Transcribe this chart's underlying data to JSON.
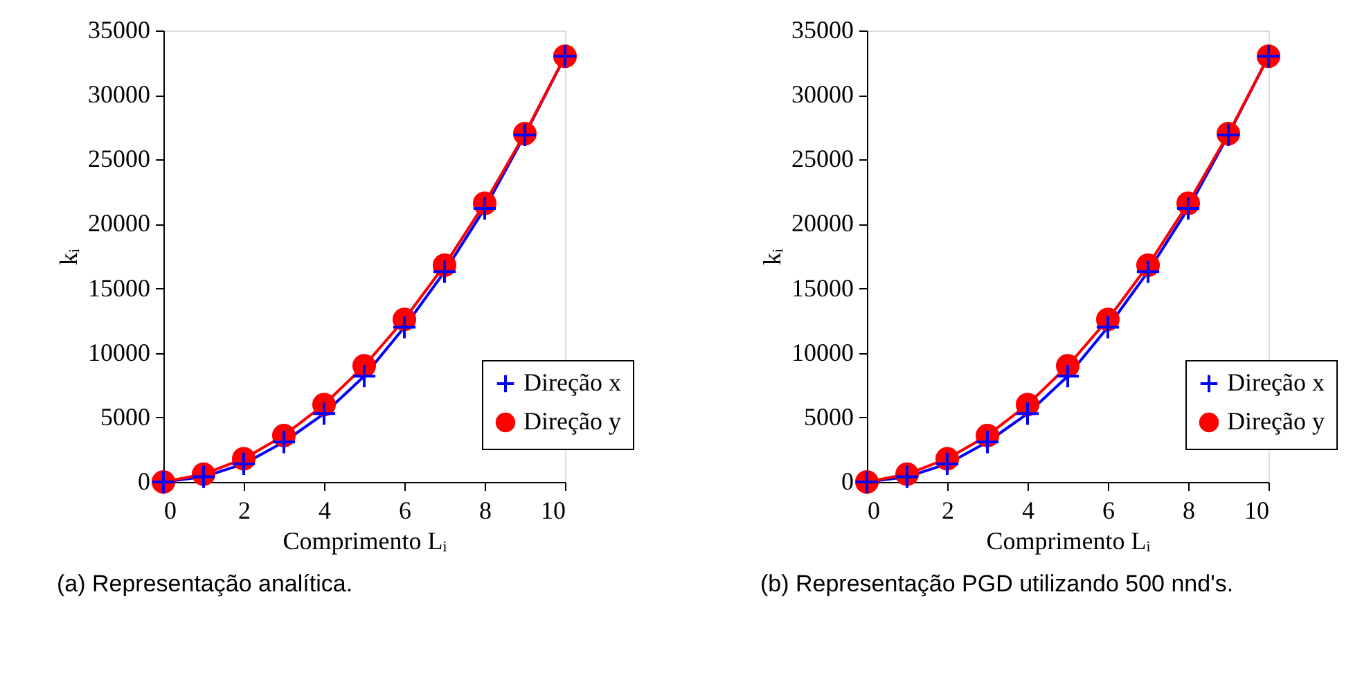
{
  "chart_data": [
    {
      "type": "line",
      "xlabel": "Comprimento Lᵢ",
      "ylabel": "kᵢ",
      "x": [
        0,
        1,
        2,
        3,
        4,
        5,
        6,
        7,
        8,
        9,
        10
      ],
      "xlim": [
        0,
        10
      ],
      "xticks": [
        0,
        2,
        4,
        6,
        8,
        10
      ],
      "ylim": [
        0,
        35000
      ],
      "yticks": [
        0,
        5000,
        10000,
        15000,
        20000,
        25000,
        30000,
        35000
      ],
      "grid": false,
      "legend": "bottom right",
      "line_style": "solid",
      "annotations": [
        "(a)  Representação analítica."
      ],
      "series": [
        {
          "name": "Direção x",
          "color": "#0000ff",
          "marker": "cross",
          "values": [
            0,
            400,
            1400,
            3100,
            5300,
            8200,
            12000,
            16300,
            21200,
            26900,
            33000
          ]
        },
        {
          "name": "Direção y",
          "color": "#ff0000",
          "marker": "circle",
          "values": [
            0,
            600,
            1800,
            3600,
            6000,
            9000,
            12600,
            16800,
            21600,
            27000,
            33000
          ]
        }
      ]
    },
    {
      "type": "line",
      "xlabel": "Comprimento Lᵢ",
      "ylabel": "kᵢ",
      "x": [
        0,
        1,
        2,
        3,
        4,
        5,
        6,
        7,
        8,
        9,
        10
      ],
      "xlim": [
        0,
        10
      ],
      "xticks": [
        0,
        2,
        4,
        6,
        8,
        10
      ],
      "ylim": [
        0,
        35000
      ],
      "yticks": [
        0,
        5000,
        10000,
        15000,
        20000,
        25000,
        30000,
        35000
      ],
      "grid": false,
      "legend": "bottom right",
      "line_style": "solid",
      "annotations": [
        "(b)  Representação PGD utilizando 500 nnd's."
      ],
      "series": [
        {
          "name": "Direção x",
          "color": "#0000ff",
          "marker": "cross",
          "values": [
            0,
            400,
            1400,
            3100,
            5300,
            8200,
            12000,
            16300,
            21200,
            26900,
            33000
          ]
        },
        {
          "name": "Direção y",
          "color": "#ff0000",
          "marker": "circle",
          "values": [
            0,
            600,
            1800,
            3600,
            6000,
            9000,
            12600,
            16800,
            21600,
            27000,
            33000
          ]
        }
      ]
    }
  ]
}
